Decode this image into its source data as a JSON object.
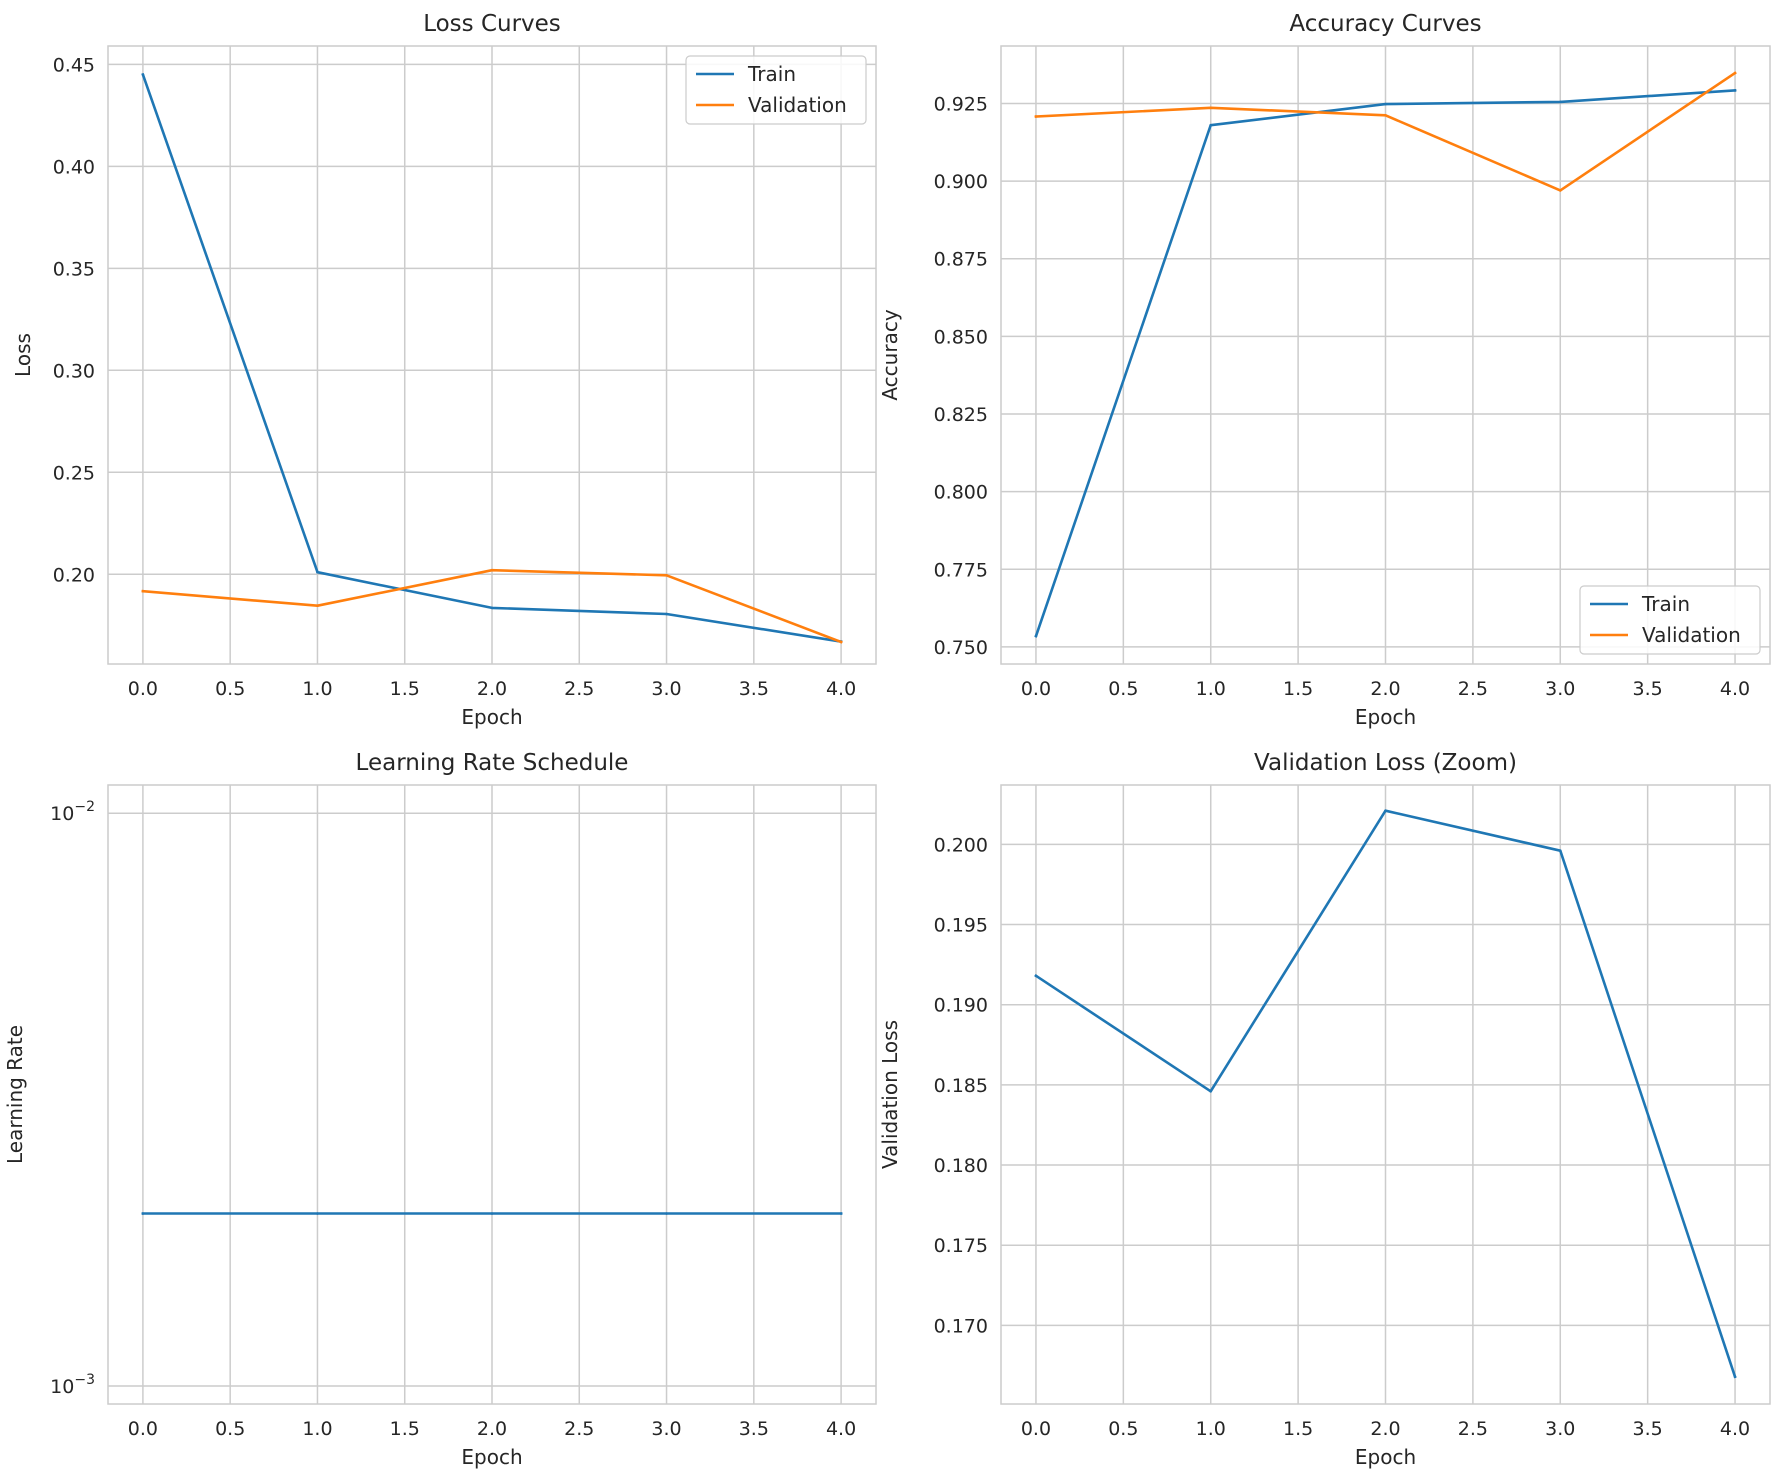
{
  "chart_data": [
    {
      "type": "line",
      "title": "Loss Curves",
      "xlabel": "Epoch",
      "ylabel": "Loss",
      "xlim": [
        -0.2,
        4.2
      ],
      "ylim": [
        0.156,
        0.459
      ],
      "grid": true,
      "x_ticks": [
        0,
        0.5,
        1,
        1.5,
        2,
        2.5,
        3,
        3.5,
        4
      ],
      "x_tick_labels": [
        "0.0",
        "0.5",
        "1.0",
        "1.5",
        "2.0",
        "2.5",
        "3.0",
        "3.5",
        "4.0"
      ],
      "y_ticks": [
        0.2,
        0.25,
        0.3,
        0.35,
        0.4,
        0.45
      ],
      "y_tick_labels": [
        "0.20",
        "0.25",
        "0.30",
        "0.35",
        "0.40",
        "0.45"
      ],
      "legend_position": "upper-right",
      "x": [
        0,
        1,
        2,
        3,
        4
      ],
      "series": [
        {
          "name": "Train",
          "color": "#1f77b4",
          "values": [
            0.445,
            0.201,
            0.1835,
            0.1805,
            0.167
          ]
        },
        {
          "name": "Validation",
          "color": "#ff7f0e",
          "values": [
            0.1917,
            0.1846,
            0.202,
            0.1995,
            0.1668
          ]
        }
      ]
    },
    {
      "type": "line",
      "title": "Accuracy Curves",
      "xlabel": "Epoch",
      "ylabel": "Accuracy",
      "xlim": [
        -0.2,
        4.2
      ],
      "ylim": [
        0.7445,
        0.9435
      ],
      "grid": true,
      "x_ticks": [
        0,
        0.5,
        1,
        1.5,
        2,
        2.5,
        3,
        3.5,
        4
      ],
      "x_tick_labels": [
        "0.0",
        "0.5",
        "1.0",
        "1.5",
        "2.0",
        "2.5",
        "3.0",
        "3.5",
        "4.0"
      ],
      "y_ticks": [
        0.75,
        0.775,
        0.8,
        0.825,
        0.85,
        0.875,
        0.9,
        0.925
      ],
      "y_tick_labels": [
        "0.750",
        "0.775",
        "0.800",
        "0.825",
        "0.850",
        "0.875",
        "0.900",
        "0.925"
      ],
      "legend_position": "lower-right",
      "x": [
        0,
        1,
        2,
        3,
        4
      ],
      "series": [
        {
          "name": "Train",
          "color": "#1f77b4",
          "values": [
            0.7535,
            0.918,
            0.9248,
            0.9255,
            0.9292
          ]
        },
        {
          "name": "Validation",
          "color": "#ff7f0e",
          "values": [
            0.9208,
            0.9236,
            0.9212,
            0.897,
            0.9348
          ]
        }
      ]
    },
    {
      "type": "line",
      "title": "Learning Rate Schedule",
      "xlabel": "Epoch",
      "ylabel": "Learning Rate",
      "xlim": [
        -0.2,
        4.2
      ],
      "ylim": [
        0.00093,
        0.0112
      ],
      "y_scale": "log",
      "grid": true,
      "x_ticks": [
        0,
        0.5,
        1,
        1.5,
        2,
        2.5,
        3,
        3.5,
        4
      ],
      "x_tick_labels": [
        "0.0",
        "0.5",
        "1.0",
        "1.5",
        "2.0",
        "2.5",
        "3.0",
        "3.5",
        "4.0"
      ],
      "y_ticks": [
        0.001,
        0.01
      ],
      "y_tick_labels": [
        {
          "base": "10",
          "exp": "−3"
        },
        {
          "base": "10",
          "exp": "−2"
        }
      ],
      "x": [
        0,
        1,
        2,
        3,
        4
      ],
      "series": [
        {
          "color": "#1f77b4",
          "values": [
            0.002,
            0.002,
            0.002,
            0.002,
            0.002
          ]
        }
      ]
    },
    {
      "type": "line",
      "title": "Validation Loss (Zoom)",
      "xlabel": "Epoch",
      "ylabel": "Validation Loss",
      "xlim": [
        -0.2,
        4.2
      ],
      "ylim": [
        0.1651,
        0.2037
      ],
      "grid": true,
      "x_ticks": [
        0,
        0.5,
        1,
        1.5,
        2,
        2.5,
        3,
        3.5,
        4
      ],
      "x_tick_labels": [
        "0.0",
        "0.5",
        "1.0",
        "1.5",
        "2.0",
        "2.5",
        "3.0",
        "3.5",
        "4.0"
      ],
      "y_ticks": [
        0.17,
        0.175,
        0.18,
        0.185,
        0.19,
        0.195,
        0.2
      ],
      "y_tick_labels": [
        "0.170",
        "0.175",
        "0.180",
        "0.185",
        "0.190",
        "0.195",
        "0.200"
      ],
      "x": [
        0,
        1,
        2,
        3,
        4
      ],
      "series": [
        {
          "color": "#1f77b4",
          "values": [
            0.1918,
            0.1846,
            0.2021,
            0.1996,
            0.1668
          ]
        }
      ]
    }
  ]
}
